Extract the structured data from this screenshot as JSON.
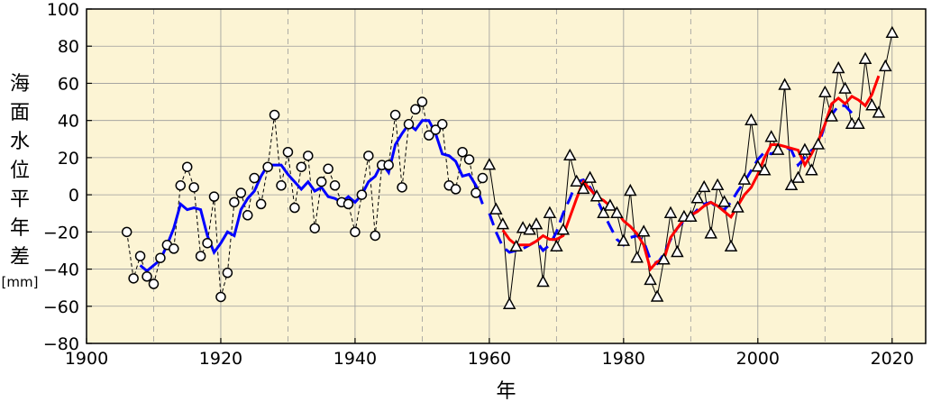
{
  "chart_data": {
    "type": "line",
    "xlabel": "年",
    "ylabel": "海面水位平年差",
    "yunit": "[mm]",
    "xlim": [
      1900,
      2025
    ],
    "ylim": [
      -80,
      100
    ],
    "xticks": [
      1900,
      1920,
      1940,
      1960,
      1980,
      2000,
      2020
    ],
    "yticks": [
      -80,
      -60,
      -40,
      -20,
      0,
      20,
      40,
      60,
      80,
      100
    ],
    "minor_vlines": [
      1910,
      1930,
      1950,
      1970,
      1990,
      2010
    ],
    "colors": {
      "background": "#fcf4d4",
      "annual": "#000000",
      "five_year_mean_early": "#0000ff",
      "five_year_mean_overlap": "#0000ff",
      "five_year_mean_recent": "#ff0000"
    },
    "series": [
      {
        "id": "annual_early",
        "marker": "circle",
        "line": "dashed",
        "x": [
          1906,
          1907,
          1908,
          1909,
          1910,
          1911,
          1912,
          1913,
          1914,
          1915,
          1916,
          1917,
          1918,
          1919,
          1920,
          1921,
          1922,
          1923,
          1924,
          1925,
          1926,
          1927,
          1928,
          1929,
          1930,
          1931,
          1932,
          1933,
          1934,
          1935,
          1936,
          1937,
          1938,
          1939,
          1940,
          1941,
          1942,
          1943,
          1944,
          1945,
          1946,
          1947,
          1948,
          1949,
          1950,
          1951,
          1952,
          1953,
          1954,
          1955,
          1956,
          1957,
          1958,
          1959
        ],
        "y": [
          -20,
          -45,
          -33,
          -44,
          -48,
          -34,
          -27,
          -29,
          5,
          15,
          4,
          -33,
          -26,
          -1,
          -55,
          -42,
          -4,
          1,
          -11,
          9,
          -5,
          15,
          43,
          5,
          23,
          -7,
          15,
          21,
          -18,
          7,
          14,
          5,
          -4,
          -5,
          -20,
          0,
          21,
          -22,
          16,
          16,
          43,
          4,
          38,
          46,
          50,
          32,
          35,
          38,
          5,
          3,
          23,
          19,
          1,
          9
        ]
      },
      {
        "id": "annual_recent",
        "marker": "triangle",
        "line": "solid",
        "x": [
          1960,
          1961,
          1962,
          1963,
          1964,
          1965,
          1966,
          1967,
          1968,
          1969,
          1970,
          1971,
          1972,
          1973,
          1974,
          1975,
          1976,
          1977,
          1978,
          1979,
          1980,
          1981,
          1982,
          1983,
          1984,
          1985,
          1986,
          1987,
          1988,
          1989,
          1990,
          1991,
          1992,
          1993,
          1994,
          1995,
          1996,
          1997,
          1998,
          1999,
          2000,
          2001,
          2002,
          2003,
          2004,
          2005,
          2006,
          2007,
          2008,
          2009,
          2010,
          2011,
          2012,
          2013,
          2014,
          2015,
          2016,
          2017,
          2018,
          2019,
          2020
        ],
        "y": [
          16,
          -8,
          -16,
          -59,
          -28,
          -18,
          -19,
          -16,
          -47,
          -10,
          -28,
          -19,
          21,
          7,
          3,
          9,
          -1,
          -10,
          -6,
          -10,
          -25,
          2,
          -34,
          -20,
          -46,
          -55,
          -35,
          -10,
          -31,
          -12,
          -12,
          -2,
          4,
          -21,
          5,
          -4,
          -28,
          -7,
          8,
          40,
          15,
          13,
          31,
          24,
          59,
          5,
          9,
          24,
          13,
          27,
          55,
          42,
          68,
          57,
          38,
          38,
          73,
          48,
          44,
          69,
          87
        ]
      },
      {
        "id": "mean_early",
        "marker": "none",
        "line": "solid",
        "x": [
          1908,
          1909,
          1910,
          1911,
          1912,
          1913,
          1914,
          1915,
          1916,
          1917,
          1918,
          1919,
          1920,
          1921,
          1922,
          1923,
          1924,
          1925,
          1926,
          1927,
          1928,
          1929,
          1930,
          1931,
          1932,
          1933,
          1934,
          1935,
          1936,
          1937,
          1938,
          1939,
          1940,
          1941,
          1942,
          1943,
          1944,
          1945,
          1946,
          1947,
          1948,
          1949,
          1950,
          1951,
          1952,
          1953,
          1954,
          1955,
          1956,
          1957,
          1958,
          1959
        ],
        "y": [
          -38,
          -41,
          -38,
          -35,
          -27,
          -18,
          -5,
          -8,
          -7,
          -8,
          -22,
          -31,
          -26,
          -20,
          -22,
          -8,
          -2,
          2,
          10,
          16,
          16,
          16,
          11,
          7,
          3,
          7,
          2,
          4,
          -1,
          -2,
          -4,
          -1,
          -4,
          0,
          7,
          10,
          17,
          12,
          27,
          33,
          38,
          35,
          40,
          40,
          33,
          22,
          21,
          18,
          10,
          11,
          5,
          -5
        ]
      },
      {
        "id": "mean_overlap",
        "marker": "none",
        "line": "dashed",
        "x": [
          1960,
          1961,
          1962,
          1963,
          1964,
          1965,
          1966,
          1967,
          1968,
          1969,
          1970,
          1971,
          1972,
          1973,
          1974,
          1975,
          1976,
          1977,
          1978,
          1979,
          1980,
          1981,
          1982,
          1983,
          1984,
          1985,
          1986,
          1987,
          1988,
          1989,
          1990,
          1991,
          1992,
          1993,
          1994,
          1995,
          1996,
          1997,
          1998,
          1999,
          2000,
          2001,
          2002,
          2003,
          2004,
          2005,
          2006,
          2007,
          2008,
          2009,
          2010,
          2011,
          2012,
          2013,
          2014,
          2015
        ],
        "y": [
          -10,
          -20,
          -28,
          -31,
          -30,
          -29,
          -27,
          -25,
          -30,
          -27,
          -20,
          -10,
          -2,
          7,
          8,
          4,
          -2,
          -10,
          -17,
          -24,
          -27,
          -23,
          -22,
          -25,
          -35,
          -37,
          -32,
          -24,
          -18,
          -14,
          -12,
          -8,
          -5,
          -4,
          -7,
          -8,
          -4,
          2,
          7,
          13,
          19,
          23,
          22,
          24,
          26,
          24,
          16,
          20,
          24,
          26,
          38,
          43,
          48,
          48,
          44,
          43
        ]
      },
      {
        "id": "mean_recent",
        "marker": "none",
        "line": "solid",
        "x": [
          1962,
          1963,
          1964,
          1965,
          1966,
          1967,
          1968,
          1969,
          1970,
          1971,
          1972,
          1973,
          1974,
          1975,
          1976,
          1977,
          1978,
          1979,
          1980,
          1981,
          1982,
          1983,
          1984,
          1985,
          1986,
          1987,
          1988,
          1989,
          1990,
          1991,
          1992,
          1993,
          1994,
          1995,
          1996,
          1997,
          1998,
          1999,
          2000,
          2001,
          2002,
          2003,
          2004,
          2005,
          2006,
          2007,
          2008,
          2009,
          2010,
          2011,
          2012,
          2013,
          2014,
          2015,
          2016,
          2017,
          2018
        ],
        "y": [
          -19,
          -24,
          -27,
          -27,
          -27,
          -25,
          -22,
          -24,
          -24,
          -22,
          -12,
          -2,
          7,
          3,
          -1,
          -3,
          -6,
          -9,
          -14,
          -17,
          -21,
          -27,
          -40,
          -36,
          -35,
          -23,
          -18,
          -13,
          -11,
          -9,
          -6,
          -4,
          -6,
          -9,
          -12,
          -6,
          0,
          4,
          11,
          20,
          27,
          27,
          26,
          25,
          24,
          16,
          22,
          29,
          38,
          49,
          52,
          49,
          53,
          51,
          48,
          54,
          64
        ]
      }
    ]
  }
}
